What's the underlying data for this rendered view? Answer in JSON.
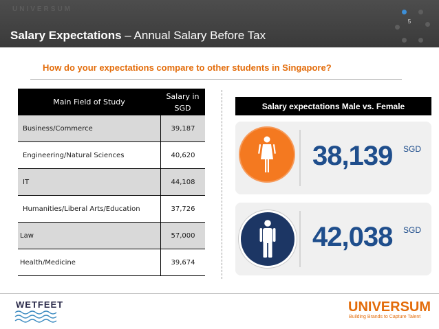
{
  "header": {
    "brand": "UNIVERSUM",
    "title_bold": "Salary Expectations",
    "title_rest": " – Annual Salary Before Tax",
    "page_number": "5"
  },
  "question": "How do your expectations compare to other students in Singapore?",
  "table": {
    "headers": {
      "field": "Main Field of Study",
      "salary_line1": "Salary in",
      "salary_line2": "SGD"
    },
    "rows": [
      {
        "field": "Business/Commerce",
        "salary": "39,187"
      },
      {
        "field": "Engineering/Natural Sciences",
        "salary": "40,620"
      },
      {
        "field": "IT",
        "salary": "44,108"
      },
      {
        "field": "Humanities/Liberal Arts/Education",
        "salary": "37,726"
      },
      {
        "field": "Law",
        "salary": "57,000"
      },
      {
        "field": "Health/Medicine",
        "salary": "39,674"
      }
    ]
  },
  "gender": {
    "header": "Salary expectations Male vs. Female",
    "female": {
      "value": "38,139",
      "unit": "SGD",
      "icon": "female-icon"
    },
    "male": {
      "value": "42,038",
      "unit": "SGD",
      "icon": "male-icon"
    }
  },
  "footer": {
    "left_logo": "WETFEET",
    "right_logo": "UNIVERSUM",
    "tagline": "Building Brands to Capture Talent"
  },
  "colors": {
    "accent_orange": "#e36c0a",
    "female_circle": "#f47920",
    "male_circle": "#1c3664",
    "value_blue": "#1f4e8c"
  }
}
